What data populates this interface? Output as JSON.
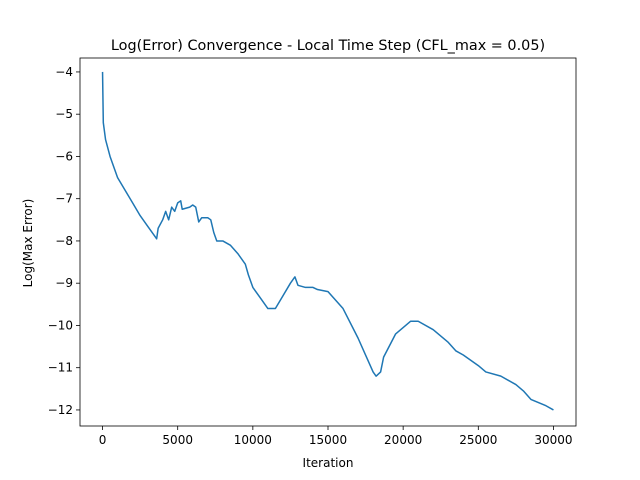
{
  "chart_data": {
    "type": "line",
    "title": "Log(Error) Convergence - Local Time Step (CFL_max = 0.05)",
    "xlabel": "Iteration",
    "ylabel": "Log(Max Error)",
    "color": "#1f77b4",
    "x": [
      0,
      50,
      200,
      500,
      1000,
      1500,
      2000,
      2500,
      3000,
      3500,
      3600,
      3700,
      4000,
      4200,
      4400,
      4600,
      4800,
      5000,
      5200,
      5300,
      5800,
      6000,
      6200,
      6400,
      6600,
      7000,
      7200,
      7400,
      7600,
      8000,
      8500,
      9000,
      9500,
      9700,
      10000,
      10500,
      11000,
      11500,
      12000,
      12500,
      12800,
      13000,
      13500,
      14000,
      14300,
      15000,
      16000,
      17000,
      17500,
      18000,
      18200,
      18500,
      18700,
      19500,
      20500,
      21000,
      22000,
      23000,
      23500,
      24000,
      25000,
      25500,
      26500,
      27500,
      28000,
      28500,
      29500,
      30000
    ],
    "values": [
      -4.0,
      -5.2,
      -5.6,
      -6.0,
      -6.5,
      -6.8,
      -7.1,
      -7.4,
      -7.65,
      -7.9,
      -7.95,
      -7.7,
      -7.5,
      -7.3,
      -7.5,
      -7.2,
      -7.3,
      -7.1,
      -7.05,
      -7.25,
      -7.2,
      -7.15,
      -7.2,
      -7.55,
      -7.45,
      -7.45,
      -7.5,
      -7.8,
      -8.0,
      -8.0,
      -8.1,
      -8.3,
      -8.55,
      -8.8,
      -9.1,
      -9.35,
      -9.6,
      -9.6,
      -9.3,
      -9.0,
      -8.85,
      -9.05,
      -9.1,
      -9.1,
      -9.15,
      -9.2,
      -9.6,
      -10.3,
      -10.7,
      -11.1,
      -11.2,
      -11.1,
      -10.75,
      -10.2,
      -9.9,
      -9.9,
      -10.1,
      -10.4,
      -10.6,
      -10.7,
      -10.95,
      -11.1,
      -11.2,
      -11.4,
      -11.55,
      -11.75,
      -11.9,
      -12.0
    ],
    "xlim": [
      -1500,
      31500
    ],
    "ylim": [
      -12.38,
      -3.67
    ],
    "xticks": [
      0,
      5000,
      10000,
      15000,
      20000,
      25000,
      30000
    ],
    "yticks": [
      {
        "value": -12,
        "label": "−12"
      },
      {
        "value": -11,
        "label": "−11"
      },
      {
        "value": -10,
        "label": "−10"
      },
      {
        "value": -9,
        "label": "−9"
      },
      {
        "value": -8,
        "label": "−8"
      },
      {
        "value": -7,
        "label": "−7"
      },
      {
        "value": -6,
        "label": "−6"
      },
      {
        "value": -5,
        "label": "−5"
      },
      {
        "value": -4,
        "label": "−4"
      }
    ]
  }
}
